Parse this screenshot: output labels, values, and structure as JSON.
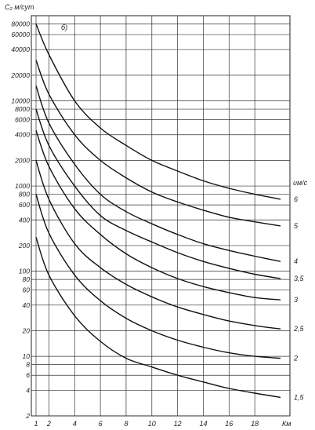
{
  "chart_data": {
    "type": "line",
    "panel_label": "б)",
    "ylabel": "C₂ м/сут",
    "xlabel": "Км",
    "series_label": "υм/с",
    "y_scale": "log",
    "ylim": [
      2,
      100000
    ],
    "xlim": [
      1,
      20
    ],
    "grid": true,
    "y_ticks": [
      {
        "v": 80000,
        "t": "80000"
      },
      {
        "v": 60000,
        "t": "60000"
      },
      {
        "v": 40000,
        "t": "40000"
      },
      {
        "v": 20000,
        "t": "20000"
      },
      {
        "v": 10000,
        "t": "10000"
      },
      {
        "v": 8000,
        "t": "8000"
      },
      {
        "v": 6000,
        "t": "6000"
      },
      {
        "v": 4000,
        "t": "4000"
      },
      {
        "v": 2000,
        "t": "2000"
      },
      {
        "v": 1000,
        "t": "1000"
      },
      {
        "v": 800,
        "t": "800"
      },
      {
        "v": 600,
        "t": "600"
      },
      {
        "v": 400,
        "t": "400"
      },
      {
        "v": 200,
        "t": "200"
      },
      {
        "v": 100,
        "t": "100"
      },
      {
        "v": 80,
        "t": "80"
      },
      {
        "v": 60,
        "t": "60"
      },
      {
        "v": 40,
        "t": "40"
      },
      {
        "v": 20,
        "t": "20"
      },
      {
        "v": 10,
        "t": "10"
      },
      {
        "v": 8,
        "t": "8"
      },
      {
        "v": 6,
        "t": "6"
      },
      {
        "v": 4,
        "t": "4"
      },
      {
        "v": 2,
        "t": "2"
      }
    ],
    "x_ticks": [
      {
        "v": 1,
        "t": "1"
      },
      {
        "v": 2,
        "t": "2"
      },
      {
        "v": 4,
        "t": "4"
      },
      {
        "v": 6,
        "t": "6"
      },
      {
        "v": 8,
        "t": "8"
      },
      {
        "v": 10,
        "t": "10"
      },
      {
        "v": 12,
        "t": "12"
      },
      {
        "v": 14,
        "t": "14"
      },
      {
        "v": 16,
        "t": "16"
      },
      {
        "v": 18,
        "t": "18"
      }
    ],
    "series": [
      {
        "name": "6",
        "points": [
          [
            1,
            80000
          ],
          [
            2,
            35000
          ],
          [
            4,
            10000
          ],
          [
            6,
            4800
          ],
          [
            8,
            3000
          ],
          [
            10,
            2000
          ],
          [
            12,
            1500
          ],
          [
            14,
            1150
          ],
          [
            16,
            940
          ],
          [
            18,
            800
          ],
          [
            20,
            700
          ]
        ]
      },
      {
        "name": "5",
        "points": [
          [
            1,
            30000
          ],
          [
            2,
            12000
          ],
          [
            4,
            4000
          ],
          [
            6,
            2000
          ],
          [
            8,
            1250
          ],
          [
            10,
            850
          ],
          [
            12,
            650
          ],
          [
            14,
            520
          ],
          [
            16,
            430
          ],
          [
            18,
            380
          ],
          [
            20,
            340
          ]
        ]
      },
      {
        "name": "4",
        "points": [
          [
            1,
            15000
          ],
          [
            2,
            5500
          ],
          [
            4,
            1800
          ],
          [
            6,
            800
          ],
          [
            8,
            500
          ],
          [
            10,
            360
          ],
          [
            12,
            270
          ],
          [
            14,
            210
          ],
          [
            16,
            175
          ],
          [
            18,
            150
          ],
          [
            20,
            130
          ]
        ]
      },
      {
        "name": "3,5",
        "points": [
          [
            1,
            8000
          ],
          [
            2,
            3000
          ],
          [
            4,
            1000
          ],
          [
            6,
            450
          ],
          [
            8,
            300
          ],
          [
            10,
            220
          ],
          [
            12,
            165
          ],
          [
            14,
            130
          ],
          [
            16,
            108
          ],
          [
            18,
            92
          ],
          [
            20,
            82
          ]
        ]
      },
      {
        "name": "3",
        "points": [
          [
            1,
            4500
          ],
          [
            2,
            1700
          ],
          [
            4,
            540
          ],
          [
            6,
            270
          ],
          [
            8,
            160
          ],
          [
            10,
            110
          ],
          [
            12,
            82
          ],
          [
            14,
            66
          ],
          [
            16,
            56
          ],
          [
            18,
            49
          ],
          [
            20,
            46
          ]
        ]
      },
      {
        "name": "2,5",
        "points": [
          [
            1,
            2000
          ],
          [
            2,
            700
          ],
          [
            4,
            210
          ],
          [
            6,
            110
          ],
          [
            8,
            70
          ],
          [
            10,
            50
          ],
          [
            12,
            38
          ],
          [
            14,
            31
          ],
          [
            16,
            26
          ],
          [
            18,
            23
          ],
          [
            20,
            21
          ]
        ]
      },
      {
        "name": "2",
        "points": [
          [
            1,
            800
          ],
          [
            2,
            280
          ],
          [
            4,
            90
          ],
          [
            6,
            45
          ],
          [
            8,
            28
          ],
          [
            10,
            20
          ],
          [
            12,
            15.5
          ],
          [
            14,
            12.8
          ],
          [
            16,
            11
          ],
          [
            18,
            10
          ],
          [
            20,
            9.5
          ]
        ]
      },
      {
        "name": "1,5",
        "points": [
          [
            1,
            250
          ],
          [
            2,
            90
          ],
          [
            4,
            30
          ],
          [
            6,
            15
          ],
          [
            8,
            9.5
          ],
          [
            10,
            7.5
          ],
          [
            12,
            6
          ],
          [
            14,
            5
          ],
          [
            16,
            4.2
          ],
          [
            18,
            3.7
          ],
          [
            20,
            3.3
          ]
        ]
      }
    ]
  }
}
